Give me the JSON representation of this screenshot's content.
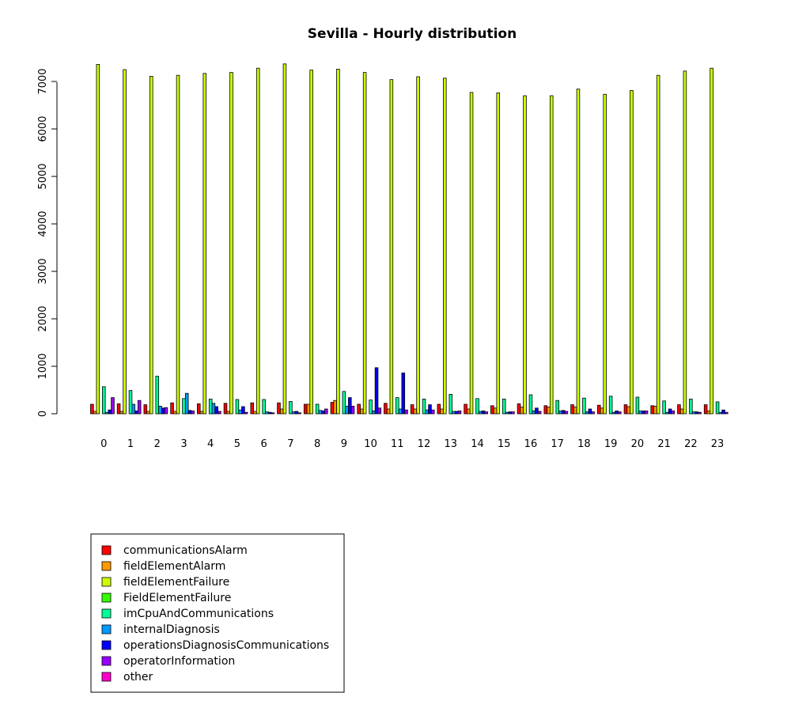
{
  "chart_data": {
    "type": "bar",
    "title": "Sevilla - Hourly distribution",
    "xlabel": "",
    "ylabel": "",
    "categories": [
      "0",
      "1",
      "2",
      "3",
      "4",
      "5",
      "6",
      "7",
      "8",
      "9",
      "10",
      "11",
      "12",
      "13",
      "14",
      "15",
      "16",
      "17",
      "18",
      "19",
      "20",
      "21",
      "22",
      "23"
    ],
    "yticks": [
      0,
      1000,
      2000,
      3000,
      4000,
      5000,
      6000,
      7000
    ],
    "ylim": [
      0,
      7500
    ],
    "grid": false,
    "legend_position": "bottom-left",
    "series": [
      {
        "name": "communicationsAlarm",
        "color": "#ff0000",
        "values": [
          200,
          210,
          190,
          230,
          210,
          220,
          230,
          230,
          200,
          240,
          200,
          220,
          190,
          200,
          200,
          170,
          210,
          170,
          190,
          180,
          190,
          170,
          190,
          190
        ]
      },
      {
        "name": "fieldElementAlarm",
        "color": "#ff9900",
        "values": [
          50,
          50,
          50,
          50,
          50,
          50,
          50,
          100,
          200,
          280,
          100,
          100,
          100,
          100,
          100,
          120,
          140,
          140,
          140,
          120,
          150,
          160,
          100,
          60
        ]
      },
      {
        "name": "fieldElementFailure",
        "color": "#ccff00",
        "values": [
          7360,
          7250,
          7110,
          7130,
          7170,
          7190,
          7280,
          7370,
          7240,
          7260,
          7190,
          7040,
          7100,
          7070,
          6770,
          6760,
          6700,
          6700,
          6840,
          6730,
          6810,
          7130,
          7220,
          7280
        ]
      },
      {
        "name": "FieldElementFailure",
        "color": "#33ff00",
        "values": [
          0,
          0,
          0,
          0,
          0,
          0,
          0,
          0,
          0,
          0,
          0,
          0,
          0,
          0,
          0,
          0,
          0,
          0,
          0,
          0,
          0,
          0,
          0,
          0
        ]
      },
      {
        "name": "imCpuAndCommunications",
        "color": "#00ff99",
        "values": [
          570,
          490,
          790,
          320,
          310,
          300,
          300,
          260,
          200,
          470,
          290,
          340,
          310,
          410,
          320,
          310,
          400,
          280,
          330,
          370,
          350,
          270,
          310,
          250
        ]
      },
      {
        "name": "internalDiagnosis",
        "color": "#0099ff",
        "values": [
          30,
          200,
          160,
          430,
          220,
          80,
          40,
          40,
          70,
          160,
          60,
          100,
          80,
          50,
          50,
          30,
          60,
          60,
          40,
          30,
          60,
          30,
          40,
          30
        ]
      },
      {
        "name": "operationsDiagnosisCommunications",
        "color": "#0000ff",
        "values": [
          80,
          60,
          120,
          70,
          150,
          150,
          30,
          50,
          60,
          340,
          970,
          860,
          190,
          50,
          60,
          40,
          120,
          70,
          100,
          60,
          60,
          100,
          40,
          80
        ]
      },
      {
        "name": "operatorInformation",
        "color": "#9900ff",
        "values": [
          340,
          280,
          130,
          60,
          50,
          30,
          20,
          20,
          100,
          160,
          120,
          80,
          80,
          60,
          40,
          40,
          50,
          50,
          40,
          40,
          60,
          60,
          30,
          30
        ]
      },
      {
        "name": "other",
        "color": "#ff00cc",
        "values": [
          0,
          0,
          0,
          0,
          0,
          0,
          0,
          0,
          0,
          0,
          0,
          0,
          0,
          0,
          0,
          0,
          0,
          0,
          0,
          0,
          0,
          0,
          0,
          0
        ]
      }
    ]
  }
}
